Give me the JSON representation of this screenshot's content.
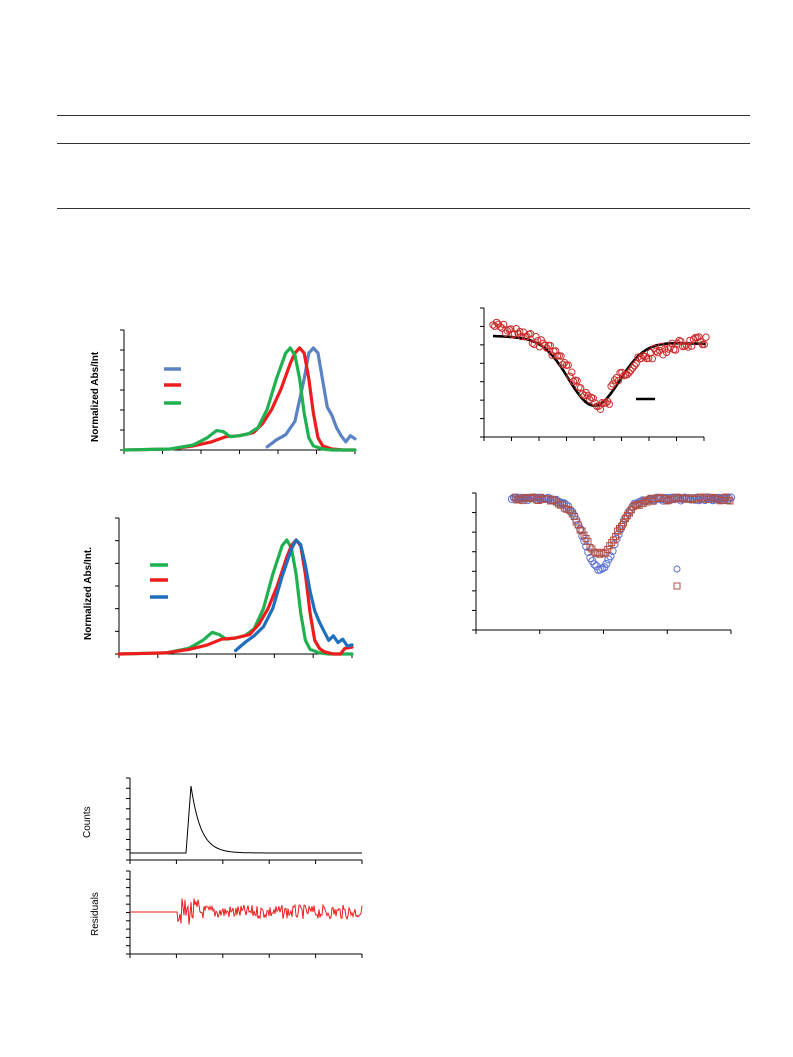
{
  "colors": {
    "blue_light": "#5b82c4",
    "blue_dark": "#1f6fbf",
    "red": "#ee1c1c",
    "green": "#1fb150",
    "dark_red_marker": "#cc2b2b",
    "brick_marker": "#b0504a",
    "blue_marker": "#5a6fd0",
    "black": "#000000",
    "residual_red": "#ee1c1c"
  },
  "panels": {
    "spec_top": {
      "ylabel": "Normalized Abs/Int"
    },
    "spec_bottom": {
      "ylabel": "Normalized Abs/Int."
    },
    "decay": {
      "ylabel": "Counts"
    },
    "residuals": {
      "ylabel": "Residuals"
    }
  },
  "chart_data": [
    {
      "type": "line",
      "panel": "spec_top",
      "grid": false,
      "legend": "left-center",
      "series": [
        {
          "color": "blue_light",
          "x": [
            0.62,
            0.66,
            0.7,
            0.74,
            0.78,
            0.8,
            0.82,
            0.84,
            0.86,
            0.88,
            0.9,
            0.92,
            0.94,
            0.96,
            0.98,
            1.0
          ],
          "y": [
            0.03,
            0.1,
            0.15,
            0.28,
            0.7,
            0.95,
            1.0,
            0.95,
            0.68,
            0.42,
            0.34,
            0.22,
            0.14,
            0.08,
            0.14,
            0.11
          ]
        },
        {
          "color": "red",
          "x": [
            0.0,
            0.2,
            0.3,
            0.38,
            0.44,
            0.5,
            0.56,
            0.6,
            0.64,
            0.68,
            0.72,
            0.74,
            0.76,
            0.78,
            0.8,
            0.82,
            0.84,
            0.86,
            0.9,
            0.95,
            1.0
          ],
          "y": [
            0.0,
            0.01,
            0.04,
            0.08,
            0.13,
            0.14,
            0.17,
            0.26,
            0.4,
            0.6,
            0.85,
            0.95,
            1.0,
            0.95,
            0.7,
            0.36,
            0.12,
            0.04,
            0.01,
            0.0,
            0.0
          ]
        },
        {
          "color": "green",
          "x": [
            0.0,
            0.2,
            0.3,
            0.36,
            0.4,
            0.43,
            0.46,
            0.5,
            0.54,
            0.58,
            0.62,
            0.66,
            0.7,
            0.72,
            0.74,
            0.76,
            0.78,
            0.8,
            0.82,
            0.86,
            0.9,
            1.0
          ],
          "y": [
            0.0,
            0.01,
            0.05,
            0.12,
            0.19,
            0.18,
            0.13,
            0.14,
            0.16,
            0.22,
            0.4,
            0.7,
            0.95,
            1.0,
            0.93,
            0.7,
            0.36,
            0.12,
            0.04,
            0.01,
            0.0,
            0.0
          ]
        }
      ]
    },
    {
      "type": "line",
      "panel": "spec_bottom",
      "grid": false,
      "legend": "left-center",
      "series": [
        {
          "color": "green",
          "x": [
            0.0,
            0.2,
            0.3,
            0.36,
            0.4,
            0.43,
            0.46,
            0.5,
            0.54,
            0.58,
            0.62,
            0.66,
            0.7,
            0.72,
            0.74,
            0.76,
            0.78,
            0.8,
            0.82,
            0.86,
            0.9,
            1.0
          ],
          "y": [
            0.0,
            0.01,
            0.05,
            0.12,
            0.19,
            0.17,
            0.13,
            0.14,
            0.16,
            0.22,
            0.4,
            0.7,
            0.95,
            1.0,
            0.93,
            0.7,
            0.36,
            0.12,
            0.04,
            0.01,
            0.0,
            0.0
          ]
        },
        {
          "color": "red",
          "x": [
            0.0,
            0.2,
            0.3,
            0.38,
            0.44,
            0.5,
            0.56,
            0.6,
            0.64,
            0.68,
            0.72,
            0.74,
            0.76,
            0.78,
            0.8,
            0.82,
            0.84,
            0.86,
            0.88,
            0.92,
            0.95,
            0.97,
            1.0
          ],
          "y": [
            0.0,
            0.01,
            0.04,
            0.08,
            0.13,
            0.14,
            0.17,
            0.26,
            0.4,
            0.6,
            0.85,
            0.95,
            1.0,
            0.95,
            0.7,
            0.36,
            0.12,
            0.05,
            0.02,
            0.0,
            0.0,
            0.05,
            0.06
          ]
        },
        {
          "color": "blue_dark",
          "x": [
            0.5,
            0.54,
            0.58,
            0.62,
            0.66,
            0.7,
            0.74,
            0.76,
            0.78,
            0.8,
            0.82,
            0.84,
            0.86,
            0.88,
            0.9,
            0.92,
            0.94,
            0.96,
            0.98,
            1.0
          ],
          "y": [
            0.03,
            0.1,
            0.16,
            0.24,
            0.4,
            0.68,
            0.92,
            1.0,
            0.96,
            0.78,
            0.55,
            0.38,
            0.28,
            0.2,
            0.12,
            0.16,
            0.1,
            0.13,
            0.07,
            0.08
          ]
        }
      ]
    },
    {
      "type": "scatter",
      "panel": "dip_top",
      "grid": false,
      "fit_line": true,
      "series": [
        {
          "color": "dark_red_marker",
          "marker": "circle"
        }
      ]
    },
    {
      "type": "scatter",
      "panel": "dip_bottom",
      "grid": false,
      "legend": "right-center",
      "series": [
        {
          "color": "blue_marker",
          "marker": "circle"
        },
        {
          "color": "brick_marker",
          "marker": "square"
        }
      ]
    },
    {
      "type": "line",
      "panel": "decay",
      "grid": false,
      "series": [
        {
          "color": "black"
        }
      ]
    },
    {
      "type": "line",
      "panel": "residuals",
      "grid": false,
      "series": [
        {
          "color": "residual_red"
        }
      ]
    }
  ]
}
